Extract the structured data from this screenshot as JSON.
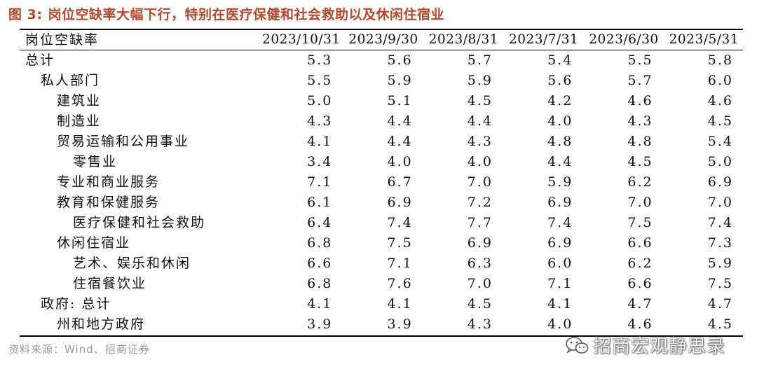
{
  "figure": {
    "label": "图 3:",
    "title": "岗位空缺率大幅下行，特别在医疗保健和社会救助以及休闲住宿业"
  },
  "table": {
    "header_label": "岗位空缺率",
    "columns": [
      "2023/10/31",
      "2023/9/30",
      "2023/8/31",
      "2023/7/31",
      "2023/6/30",
      "2023/5/31"
    ],
    "rows": [
      {
        "label": "总计",
        "values": [
          "5.3",
          "5.6",
          "5.7",
          "5.4",
          "5.5",
          "5.8"
        ]
      },
      {
        "label": "私人部门",
        "values": [
          "5.5",
          "5.9",
          "5.9",
          "5.6",
          "5.7",
          "6.0"
        ]
      },
      {
        "label": "建筑业",
        "values": [
          "5.0",
          "5.1",
          "4.5",
          "4.2",
          "4.6",
          "4.6"
        ]
      },
      {
        "label": "制造业",
        "values": [
          "4.3",
          "4.4",
          "4.4",
          "4.0",
          "4.3",
          "4.5"
        ]
      },
      {
        "label": "贸易运输和公用事业",
        "values": [
          "4.1",
          "4.4",
          "4.3",
          "4.8",
          "4.8",
          "5.4"
        ]
      },
      {
        "label": "零售业",
        "values": [
          "3.4",
          "4.0",
          "4.0",
          "4.4",
          "4.5",
          "5.0"
        ]
      },
      {
        "label": "专业和商业服务",
        "values": [
          "7.1",
          "6.7",
          "7.0",
          "5.9",
          "6.2",
          "6.9"
        ]
      },
      {
        "label": "教育和保健服务",
        "values": [
          "6.1",
          "6.9",
          "7.2",
          "6.9",
          "7.0",
          "7.0"
        ]
      },
      {
        "label": "医疗保健和社会救助",
        "values": [
          "6.4",
          "7.4",
          "7.7",
          "7.4",
          "7.5",
          "7.4"
        ]
      },
      {
        "label": "休闲住宿业",
        "values": [
          "6.8",
          "7.5",
          "6.9",
          "6.9",
          "6.6",
          "7.3"
        ]
      },
      {
        "label": "艺术、娱乐和休闲",
        "values": [
          "6.6",
          "7.1",
          "6.3",
          "6.0",
          "6.2",
          "5.9"
        ]
      },
      {
        "label": "住宿餐饮业",
        "values": [
          "6.8",
          "7.6",
          "7.0",
          "7.1",
          "6.6",
          "7.5"
        ]
      },
      {
        "label": "政府: 总计",
        "values": [
          "4.1",
          "4.1",
          "4.5",
          "4.1",
          "4.7",
          "4.7"
        ]
      },
      {
        "label": "州和地方政府",
        "values": [
          "3.9",
          "3.9",
          "4.3",
          "4.0",
          "4.6",
          "4.5"
        ]
      }
    ]
  },
  "source": "资料来源：Wind、招商证券",
  "watermark": "招商宏观静思录",
  "colors": {
    "title": "#b5472c",
    "source": "#9a9a9a"
  },
  "icons": {
    "watermark": "wechat-icon"
  }
}
